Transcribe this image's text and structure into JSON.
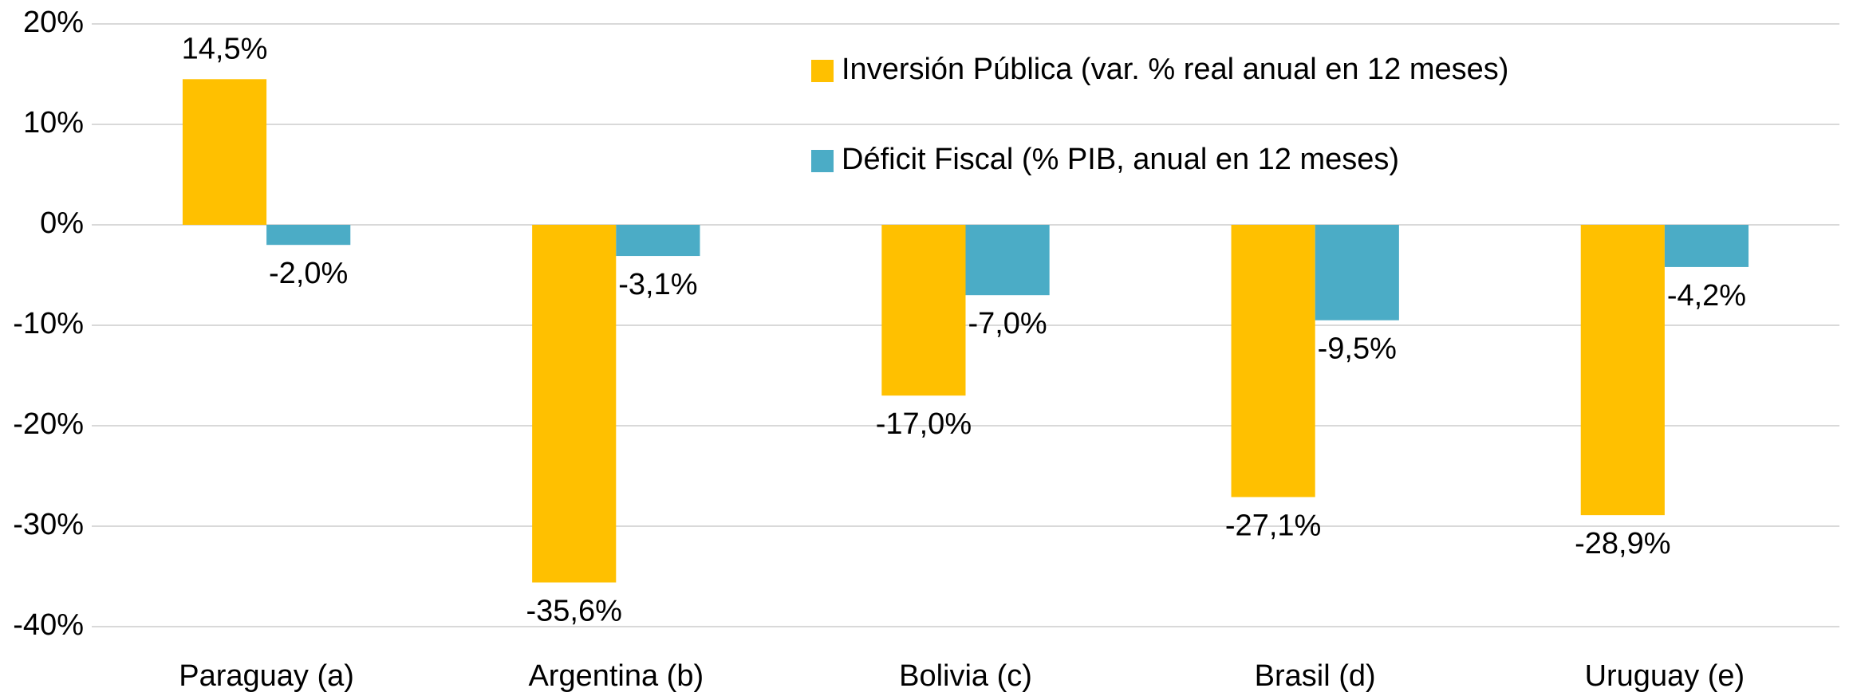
{
  "chart_data": {
    "type": "bar",
    "categories": [
      "Paraguay (a)",
      "Argentina (b)",
      "Bolivia (c)",
      "Brasil (d)",
      "Uruguay (e)"
    ],
    "series": [
      {
        "name": "Inversión Pública (var. % real anual en 12 meses)",
        "color": "#FFC000",
        "values": [
          14.5,
          -35.6,
          -17.0,
          -27.1,
          -28.9
        ],
        "value_labels": [
          "14,5%",
          "-35,6%",
          "-17,0%",
          "-27,1%",
          "-28,9%"
        ]
      },
      {
        "name": "Déficit Fiscal (% PIB, anual en 12 meses)",
        "color": "#4BACC6",
        "values": [
          -2.0,
          -3.1,
          -7.0,
          -9.5,
          -4.2
        ],
        "value_labels": [
          "-2,0%",
          "-3,1%",
          "-7,0%",
          "-9,5%",
          "-4,2%"
        ]
      }
    ],
    "ylim": [
      -40,
      20
    ],
    "yticks": [
      {
        "value": -40,
        "label": "-40%"
      },
      {
        "value": -30,
        "label": "-30%"
      },
      {
        "value": -20,
        "label": "-20%"
      },
      {
        "value": -10,
        "label": "-10%"
      },
      {
        "value": 0,
        "label": "0%"
      },
      {
        "value": 10,
        "label": "10%"
      },
      {
        "value": 20,
        "label": "20%"
      }
    ],
    "grid": true
  }
}
